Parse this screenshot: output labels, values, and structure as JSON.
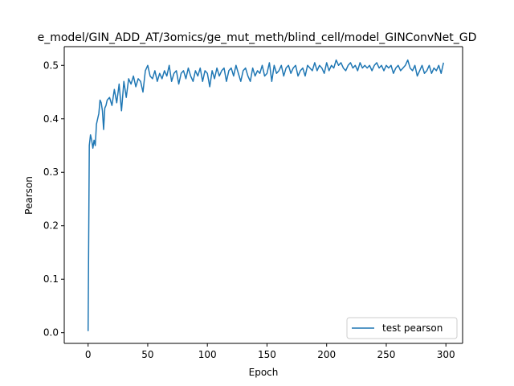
{
  "chart_data": {
    "type": "line",
    "title": "e_model/GIN_ADD_AT/3omics/ge_mut_meth/blind_cell/model_GINConvNet_GD",
    "xlabel": "Epoch",
    "ylabel": "Pearson",
    "xlim": [
      -20,
      314
    ],
    "ylim": [
      -0.02,
      0.535
    ],
    "xticks": [
      0,
      50,
      100,
      150,
      200,
      250,
      300
    ],
    "yticks": [
      0.0,
      0.1,
      0.2,
      0.3,
      0.4,
      0.5
    ],
    "xtick_labels": [
      "0",
      "50",
      "100",
      "150",
      "200",
      "250",
      "300"
    ],
    "ytick_labels": [
      "0.0",
      "0.1",
      "0.2",
      "0.3",
      "0.4",
      "0.5"
    ],
    "grid": false,
    "legend_position": "lower-right",
    "series": [
      {
        "name": "test pearson",
        "color": "#1f77b4",
        "x": [
          0,
          1,
          2,
          3,
          4,
          5,
          6,
          7,
          8,
          9,
          10,
          11,
          12,
          13,
          14,
          15,
          16,
          18,
          20,
          22,
          24,
          26,
          28,
          30,
          32,
          34,
          36,
          38,
          40,
          42,
          44,
          46,
          48,
          50,
          52,
          54,
          56,
          58,
          60,
          62,
          64,
          66,
          68,
          70,
          72,
          74,
          76,
          78,
          80,
          82,
          84,
          86,
          88,
          90,
          92,
          94,
          96,
          98,
          100,
          102,
          104,
          106,
          108,
          110,
          112,
          114,
          116,
          118,
          120,
          122,
          124,
          126,
          128,
          130,
          132,
          134,
          136,
          138,
          140,
          142,
          144,
          146,
          148,
          150,
          152,
          154,
          156,
          158,
          160,
          162,
          164,
          166,
          168,
          170,
          172,
          174,
          176,
          178,
          180,
          182,
          184,
          186,
          188,
          190,
          192,
          194,
          196,
          198,
          200,
          202,
          204,
          206,
          208,
          210,
          212,
          214,
          216,
          218,
          220,
          222,
          224,
          226,
          228,
          230,
          232,
          234,
          236,
          238,
          240,
          242,
          244,
          246,
          248,
          250,
          252,
          254,
          256,
          258,
          260,
          262,
          264,
          266,
          268,
          270,
          272,
          274,
          276,
          278,
          280,
          282,
          284,
          286,
          288,
          290,
          292,
          294,
          296,
          298
        ],
        "y": [
          0.003,
          0.35,
          0.37,
          0.36,
          0.345,
          0.36,
          0.35,
          0.39,
          0.4,
          0.41,
          0.435,
          0.43,
          0.415,
          0.38,
          0.42,
          0.425,
          0.435,
          0.44,
          0.425,
          0.455,
          0.43,
          0.465,
          0.415,
          0.47,
          0.44,
          0.475,
          0.465,
          0.48,
          0.46,
          0.475,
          0.47,
          0.45,
          0.49,
          0.5,
          0.48,
          0.475,
          0.49,
          0.47,
          0.485,
          0.475,
          0.49,
          0.48,
          0.5,
          0.47,
          0.485,
          0.49,
          0.465,
          0.485,
          0.49,
          0.475,
          0.495,
          0.48,
          0.47,
          0.49,
          0.48,
          0.495,
          0.47,
          0.49,
          0.485,
          0.46,
          0.49,
          0.475,
          0.495,
          0.48,
          0.49,
          0.495,
          0.47,
          0.49,
          0.495,
          0.48,
          0.5,
          0.485,
          0.47,
          0.49,
          0.495,
          0.48,
          0.47,
          0.495,
          0.48,
          0.49,
          0.485,
          0.5,
          0.48,
          0.485,
          0.505,
          0.47,
          0.5,
          0.485,
          0.49,
          0.5,
          0.48,
          0.495,
          0.5,
          0.485,
          0.495,
          0.5,
          0.48,
          0.49,
          0.495,
          0.48,
          0.5,
          0.495,
          0.49,
          0.505,
          0.49,
          0.5,
          0.495,
          0.485,
          0.505,
          0.49,
          0.5,
          0.495,
          0.51,
          0.5,
          0.505,
          0.495,
          0.49,
          0.5,
          0.505,
          0.495,
          0.5,
          0.49,
          0.505,
          0.495,
          0.5,
          0.495,
          0.5,
          0.49,
          0.5,
          0.505,
          0.495,
          0.5,
          0.49,
          0.5,
          0.495,
          0.5,
          0.485,
          0.495,
          0.5,
          0.49,
          0.495,
          0.5,
          0.51,
          0.495,
          0.49,
          0.5,
          0.48,
          0.49,
          0.5,
          0.485,
          0.49,
          0.5,
          0.485,
          0.495,
          0.49,
          0.5,
          0.485,
          0.505
        ]
      }
    ]
  }
}
